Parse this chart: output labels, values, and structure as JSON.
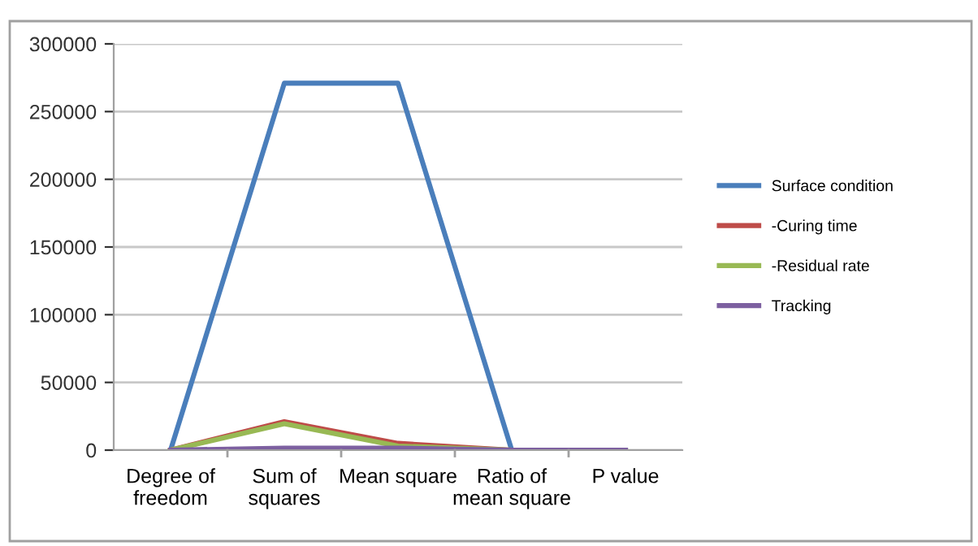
{
  "chart_data": {
    "type": "line",
    "categories": [
      "Degree of\nfreedom",
      "Sum of\nsquares",
      "Mean square",
      "Ratio of\nmean square",
      "P value"
    ],
    "series": [
      {
        "name": "Surface condition",
        "color": "#4a7ebb",
        "values": [
          0,
          271000,
          271000,
          0,
          0
        ]
      },
      {
        "name": "-Curing time",
        "color": "#be4b48",
        "values": [
          0,
          21000,
          5000,
          0,
          0
        ]
      },
      {
        "name": "-Residual rate",
        "color": "#98b954",
        "values": [
          0,
          19500,
          3000,
          0,
          0
        ]
      },
      {
        "name": "Tracking",
        "color": "#7d60a0",
        "values": [
          0,
          1500,
          1500,
          0,
          0
        ]
      }
    ],
    "ylim": [
      0,
      300000
    ],
    "yticks": [
      0,
      50000,
      100000,
      150000,
      200000,
      250000,
      300000
    ],
    "grid": "y",
    "legend": "right",
    "marker": "none"
  }
}
